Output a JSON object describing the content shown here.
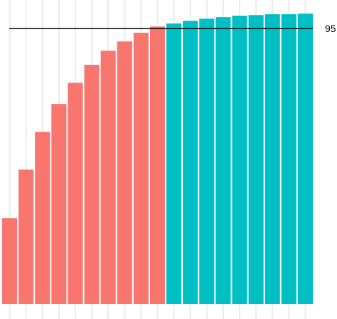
{
  "chart_data": {
    "type": "bar",
    "categories": [
      null,
      null,
      null,
      null,
      null,
      null,
      null,
      null,
      null,
      null,
      null,
      null,
      null,
      null,
      null,
      null,
      null,
      null,
      null
    ],
    "series": [
      {
        "color": "#F8766D",
        "values": [
          31.7,
          47.9,
          60.5,
          69.8,
          76.9,
          82.9,
          87.6,
          90.7,
          93.6,
          95.7,
          null,
          null,
          null,
          null,
          null,
          null,
          null,
          null,
          null
        ]
      },
      {
        "color": "#00BFC4",
        "values": [
          null,
          null,
          null,
          null,
          null,
          null,
          null,
          null,
          null,
          null,
          96.7,
          97.6,
          98.3,
          98.8,
          99.3,
          99.5,
          99.8,
          99.8,
          100
        ]
      }
    ],
    "ylim": [
      3,
      100.5
    ],
    "hline": 95,
    "grid": true
  }
}
